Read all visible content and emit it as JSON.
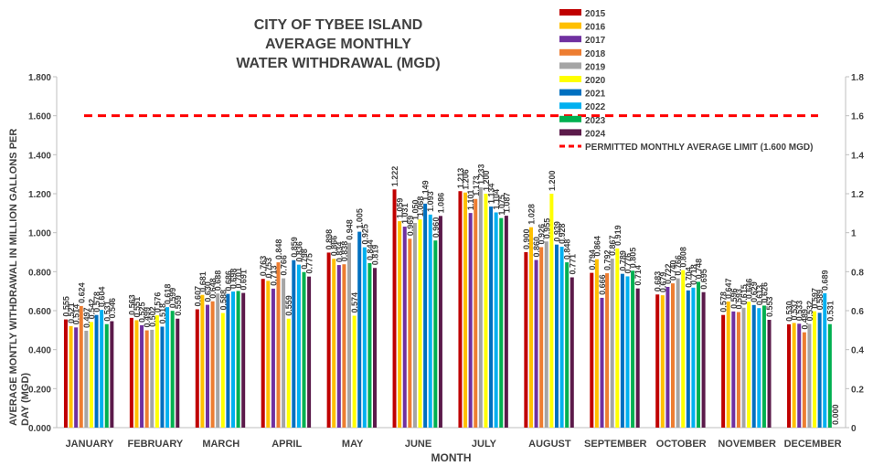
{
  "chart_data": {
    "type": "bar",
    "title": [
      "CITY OF TYBEE ISLAND",
      "AVERAGE MONTHLY",
      "WATER WITHDRAWAL (MGD)"
    ],
    "y_label": [
      "AVERAGE MONTLY WITHDRAWAL IN MILLION GALLONS PER",
      "DAY (MGD)"
    ],
    "x_label": "MONTH",
    "categories": [
      "JANUARY",
      "FEBRUARY",
      "MARCH",
      "APRIL",
      "MAY",
      "JUNE",
      "JULY",
      "AUGUST",
      "SEPTEMBER",
      "OCTOBER",
      "NOVEMBER",
      "DECEMBER"
    ],
    "series": [
      {
        "name": "2015",
        "color": "#c00000",
        "values": [
          0.555,
          0.563,
          0.607,
          0.763,
          0.898,
          1.222,
          1.213,
          0.9,
          0.794,
          0.683,
          0.578,
          0.53
        ],
        "value_labels": [
          "0.555",
          "0.563",
          "0.607",
          "0.763",
          "0.898",
          "1.222",
          "1.213",
          "0.900",
          "0.794",
          "0.683",
          "0.578",
          "0.530"
        ]
      },
      {
        "name": "2016",
        "color": "#ffc000",
        "values": [
          0.521,
          0.551,
          0.681,
          0.753,
          0.866,
          1.059,
          1.206,
          1.028,
          0.864,
          0.679,
          0.647,
          0.537
        ],
        "value_labels": [
          "0.521",
          "0.551",
          "0.681",
          "0.753",
          "0.866",
          "1.059",
          "1.206",
          "1.028",
          "0.864",
          "0.679",
          "0.647",
          "0.537"
        ]
      },
      {
        "name": "2017",
        "color": "#7030a0",
        "values": [
          0.514,
          0.525,
          0.63,
          0.713,
          0.834,
          1.031,
          1.101,
          0.86,
          0.666,
          0.722,
          0.596,
          0.533
        ],
        "value_labels": [
          "0.514",
          "0.525",
          "0.630",
          "0.713",
          "0.834",
          "1.031",
          "1.101",
          "0.860",
          "0.666",
          "0.722",
          "0.596",
          "0.533"
        ]
      },
      {
        "name": "2018",
        "color": "#ed7d31",
        "values": [
          0.624,
          0.499,
          0.648,
          0.848,
          0.838,
          0.969,
          1.173,
          0.926,
          0.792,
          0.74,
          0.593,
          0.489
        ],
        "value_labels": [
          "0.624",
          "0.499",
          "0.648",
          "0.848",
          "0.838",
          "0.969",
          "1.173",
          "0.926",
          "0.792",
          "0.740",
          "0.593",
          "0.489"
        ]
      },
      {
        "name": "2019",
        "color": "#a5a5a5",
        "values": [
          0.497,
          0.502,
          0.688,
          0.766,
          0.948,
          1.05,
          1.233,
          0.955,
          0.867,
          0.766,
          0.615,
          0.532
        ],
        "value_labels": [
          "0.497",
          "0.502",
          "0.688",
          "0.766",
          "0.948",
          "1.050",
          "1.233",
          "0.955",
          "0.867",
          "0.766",
          "0.615",
          "0.532"
        ]
      },
      {
        "name": "2020",
        "color": "#ffff00",
        "values": [
          0.542,
          0.576,
          0.588,
          0.559,
          0.574,
          1.068,
          1.2,
          1.2,
          0.919,
          0.808,
          0.646,
          0.597
        ],
        "value_labels": [
          "0.542",
          "0.576",
          "0.588",
          "0.559",
          "0.574",
          "1.068",
          "1.200",
          "1.200",
          "0.919",
          "0.808",
          "0.646",
          "0.597"
        ]
      },
      {
        "name": "2021",
        "color": "#0070c0",
        "values": [
          0.578,
          0.518,
          0.686,
          0.859,
          1.005,
          1.149,
          1.134,
          0.939,
          0.789,
          0.704,
          0.629,
          0.589
        ],
        "value_labels": [
          "0.578",
          "0.518",
          "0.686",
          "0.859",
          "1.005",
          "1.149",
          "1.134",
          "0.939",
          "0.789",
          "0.704",
          "0.629",
          "0.589"
        ]
      },
      {
        "name": "2022",
        "color": "#00b0f0",
        "values": [
          0.604,
          0.618,
          0.698,
          0.836,
          0.925,
          1.093,
          1.104,
          0.928,
          0.776,
          0.718,
          0.613,
          0.689
        ],
        "value_labels": [
          "0.604",
          "0.618",
          "0.698",
          "0.836",
          "0.925",
          "1.093",
          "1.104",
          "0.928",
          "0.776",
          "0.718",
          "0.613",
          "0.689"
        ]
      },
      {
        "name": "2023",
        "color": "#00b050",
        "values": [
          0.531,
          0.599,
          0.701,
          0.798,
          0.844,
          0.96,
          1.075,
          0.848,
          0.805,
          0.748,
          0.626,
          0.531
        ],
        "value_labels": [
          "0.531",
          "0.599",
          "0.701",
          "0.798",
          "0.844",
          "0.960",
          "1.075",
          "0.848",
          "0.805",
          "0.748",
          "0.626",
          "0.531"
        ]
      },
      {
        "name": "2024",
        "color": "#5b1a4a",
        "values": [
          0.546,
          0.559,
          0.691,
          0.775,
          0.819,
          1.086,
          1.087,
          0.771,
          0.714,
          0.695,
          0.553,
          0
        ],
        "value_labels": [
          "0.546",
          "0.559",
          "0.691",
          "0.775",
          "0.819",
          "1.086",
          "1.087",
          "0.771",
          "0.714",
          "0.695",
          "0.553",
          "0.000"
        ]
      }
    ],
    "limit": {
      "name": "PERMITTED MONTHLY AVERAGE LIMIT (1.600 MGD)",
      "value": 1.6,
      "color": "#ff0000"
    },
    "ylim": [
      0,
      1.8
    ],
    "yticks": [
      {
        "value": 0,
        "label": "0.000"
      },
      {
        "value": 0.2,
        "label": "0.200"
      },
      {
        "value": 0.4,
        "label": "0.400"
      },
      {
        "value": 0.6,
        "label": "0.600"
      },
      {
        "value": 0.8,
        "label": "0.800"
      },
      {
        "value": 1,
        "label": "1.000"
      },
      {
        "value": 1.2,
        "label": "1.200"
      },
      {
        "value": 1.4,
        "label": "1.400"
      },
      {
        "value": 1.6,
        "label": "1.600"
      },
      {
        "value": 1.8,
        "label": "1.800"
      }
    ],
    "y2lim": [
      0,
      1.8
    ],
    "y2ticks": [
      0,
      0.2,
      0.4,
      0.6,
      0.8,
      1,
      1.2,
      1.4,
      1.6,
      1.8
    ],
    "grid": false,
    "legend": "top-right"
  }
}
